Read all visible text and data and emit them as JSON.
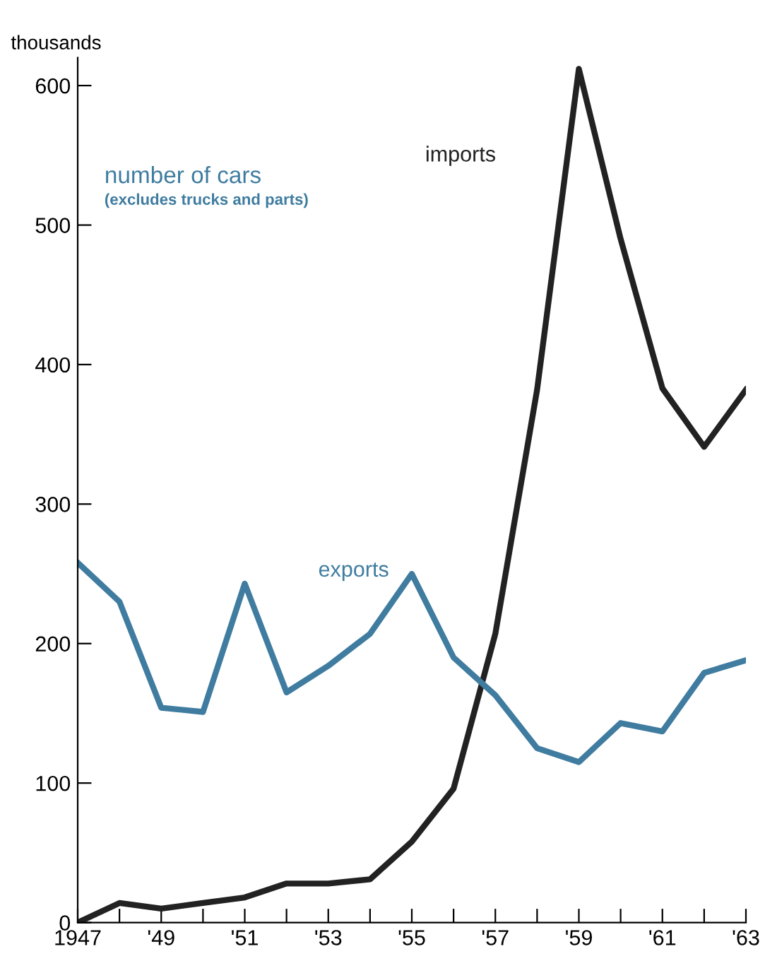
{
  "chart_data": {
    "type": "line",
    "ylabel": "thousands",
    "annotations": [
      "number of cars",
      "(excludes trucks and parts)"
    ],
    "x": [
      1947,
      1948,
      1949,
      1950,
      1951,
      1952,
      1953,
      1954,
      1955,
      1956,
      1957,
      1958,
      1959,
      1960,
      1961,
      1962,
      1963
    ],
    "series": [
      {
        "name": "imports",
        "color": "#222222",
        "values": [
          0,
          14,
          10,
          14,
          18,
          28,
          28,
          31,
          58,
          96,
          207,
          382,
          612,
          490,
          383,
          341,
          382
        ]
      },
      {
        "name": "exports",
        "color": "#3f7ca0",
        "values": [
          258,
          230,
          154,
          151,
          243,
          165,
          184,
          207,
          250,
          190,
          163,
          125,
          115,
          143,
          137,
          179,
          188
        ]
      }
    ],
    "xlim": [
      1947,
      1963
    ],
    "xticks": [
      {
        "value": 1947,
        "label": "1947"
      },
      {
        "value": 1948,
        "label": null
      },
      {
        "value": 1949,
        "label": "'49"
      },
      {
        "value": 1950,
        "label": null
      },
      {
        "value": 1951,
        "label": "'51"
      },
      {
        "value": 1952,
        "label": null
      },
      {
        "value": 1953,
        "label": "'53"
      },
      {
        "value": 1954,
        "label": null
      },
      {
        "value": 1955,
        "label": "'55"
      },
      {
        "value": 1956,
        "label": null
      },
      {
        "value": 1957,
        "label": "'57"
      },
      {
        "value": 1958,
        "label": null
      },
      {
        "value": 1959,
        "label": "'59"
      },
      {
        "value": 1960,
        "label": null
      },
      {
        "value": 1961,
        "label": "'61"
      },
      {
        "value": 1962,
        "label": null
      },
      {
        "value": 1963,
        "label": "'63"
      }
    ],
    "ylim": [
      0,
      620
    ],
    "yticks": [
      0,
      100,
      200,
      300,
      400,
      500,
      600
    ],
    "grid": false,
    "legend": false,
    "marker": "none",
    "line_style": "solid"
  }
}
